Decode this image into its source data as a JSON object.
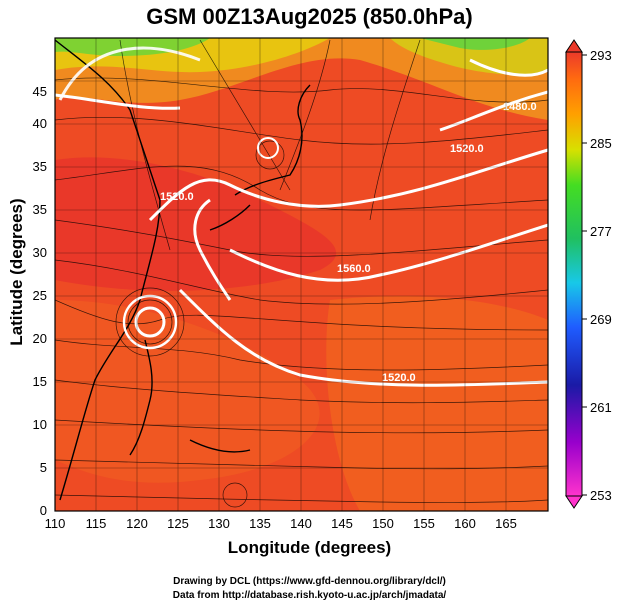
{
  "title": "GSM 00Z13Aug2025 (850.0hPa)",
  "xlabel": "Longitude (degrees)",
  "ylabel": "Latitude (degrees)",
  "credits": {
    "line1": "Drawing by DCL (https://www.gfd-dennou.org/library/dcl/)",
    "line2": "Data from http://database.rish.kyoto-u.ac.jp/arch/jmadata/"
  },
  "x_ticks": [
    "110",
    "115",
    "120",
    "125",
    "130",
    "135",
    "140",
    "145",
    "150",
    "155",
    "160",
    "165"
  ],
  "y_ticks": [
    "0",
    "5",
    "10",
    "15",
    "20",
    "25",
    "30",
    "35",
    "40",
    "45"
  ],
  "colorbar": {
    "labels": [
      "293",
      "285",
      "277",
      "269",
      "261",
      "253"
    ]
  },
  "contour_labels": [
    "1560.0",
    "1520.0",
    "1520.0",
    "1480.0",
    "1520.0"
  ],
  "chart_data": {
    "type": "heatmap",
    "title": "GSM 00Z13Aug2025 (850.0hPa)",
    "xlabel": "Longitude (degrees)",
    "ylabel": "Latitude (degrees)",
    "xlim": [
      110,
      170
    ],
    "ylim": [
      0,
      50
    ],
    "colorbar_range": [
      253,
      293
    ],
    "colorbar_ticks": [
      253,
      261,
      269,
      277,
      285,
      293
    ],
    "contour_values": [
      1480,
      1520,
      1560
    ],
    "grid": true
  },
  "colors": {
    "warm": "#e8402a",
    "hot": "#f0621f",
    "orange": "#f59a1c",
    "yellow": "#e0d000",
    "green": "#3cc83c",
    "contour": "#ffffff"
  }
}
